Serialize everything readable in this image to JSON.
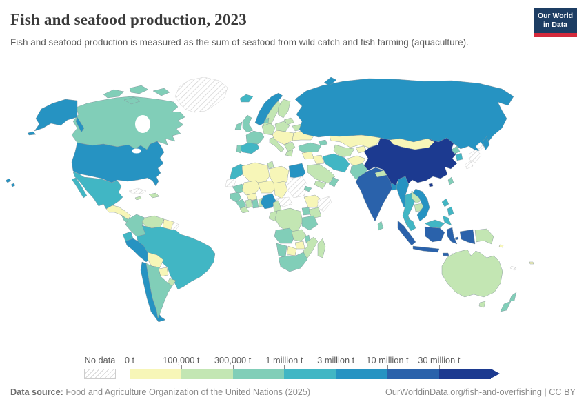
{
  "header": {
    "title": "Fish and seafood production, 2023",
    "subtitle": "Fish and seafood production is measured as the sum of seafood from wild catch and fish farming (aquaculture).",
    "logo": {
      "line1": "Our World",
      "line2": "in Data"
    }
  },
  "footer": {
    "source_label": "Data source:",
    "source_text": " Food and Agriculture Organization of the United Nations (2025)",
    "link_text": "OurWorldinData.org/fish-and-overfishing | CC BY"
  },
  "chart_data": {
    "type": "choropleth-map",
    "title": "Fish and seafood production, 2023",
    "unit": "tonnes",
    "legend": {
      "no_data_label": "No data",
      "tick_labels": [
        "0 t",
        "100,000 t",
        "300,000 t",
        "1 million t",
        "3 million t",
        "10 million t",
        "30 million t"
      ],
      "colors": [
        "#f7f6b8",
        "#c3e6b3",
        "#81ceb8",
        "#41b6c4",
        "#2693c2",
        "#2a62ab",
        "#1c3a90"
      ],
      "no_data_style": "diagonal-hatch",
      "open_ended_arrow": true
    },
    "bin_meaning": "index into legend colors; bins are [0-100k, 100k-300k, 300k-1M, 1M-3M, 3M-10M, 10M-30M, 30M+] tonnes",
    "regions": {
      "Canada": 2,
      "Arctic Islands": 2,
      "Alaska": 4,
      "Greenland": "no-data",
      "Iceland": 3,
      "United States": 4,
      "Hawaii": 4,
      "Mexico": 3,
      "Guatemala Honduras Nicaragua": 0,
      "Costa Rica Panama": 2,
      "Cuba": "no-data",
      "Jamaica": 1,
      "Hispaniola": 1,
      "Colombia": 2,
      "Venezuela": 1,
      "Guyana Suriname": 0,
      "French Guiana": "no-data",
      "Ecuador": 3,
      "Peru": 4,
      "Brazil": 3,
      "Bolivia": 0,
      "Paraguay": 0,
      "Uruguay": 1,
      "Chile": 4,
      "Argentina": 2,
      "Norway": 4,
      "Sweden": 1,
      "Finland": 1,
      "Baltics": 1,
      "Denmark": 2,
      "United Kingdom": 2,
      "Ireland": 2,
      "Germany": 1,
      "France": 2,
      "Spain": 3,
      "Portugal": 2,
      "Italy": 1,
      "Poland": 1,
      "Central Europe": 0,
      "Balkans": 1,
      "Greece": 1,
      "Ukraine": 0,
      "Belarus": 1,
      "Turkey": 2,
      "Caucasus": 2,
      "Russia": 4,
      "Novaya Zemlya": 4,
      "Sakhalin": 4,
      "Kazakhstan": 0,
      "Uzbekistan Turkmenistan": 1,
      "Kyrgyzstan Tajikistan": 0,
      "Afghanistan": 0,
      "Iran": 3,
      "Iraq": 0,
      "Levant": 0,
      "Saudi Arabia": 1,
      "Yemen": 1,
      "Oman": 2,
      "Eritrea": 2,
      "Pakistan": 2,
      "India": 5,
      "Sri Lanka": 2,
      "Bangladesh": 4,
      "Nepal": 1,
      "Myanmar": 4,
      "Thailand": 3,
      "Laos": 1,
      "Cambodia": 1,
      "Vietnam": 4,
      "Malaysia Peninsular": 3,
      "Malaysia Borneo": 3,
      "China": 6,
      "Hainan": 6,
      "Mongolia": 0,
      "North Korea": 2,
      "South Korea": 3,
      "Japan": "no-data",
      "Taiwan": 2,
      "Philippines": 3,
      "Indonesia Sumatra": 5,
      "Indonesia Java": 5,
      "Indonesia Kalimantan": 5,
      "Indonesia Sulawesi": 5,
      "Indonesia Papua": 5,
      "Indonesia Lesser Sunda": 5,
      "Papua New Guinea": 1,
      "Solomon Islands": 0,
      "Fiji": 0,
      "New Caledonia": "no-data",
      "Australia": 1,
      "Tasmania": 1,
      "New Zealand North": 2,
      "New Zealand South": 2,
      "Morocco": 3,
      "Western Sahara": "no-data",
      "Mauritania": 2,
      "Senegal": 2,
      "Guinea": 2,
      "Sierra Leone Liberia": 1,
      "Algeria": 0,
      "Tunisia": 1,
      "Libya": 0,
      "Egypt": 4,
      "Mali": 0,
      "Burkina Faso": 0,
      "Niger": 0,
      "Chad": 0,
      "Sudan": "no-data",
      "Central African Republic": "no-data",
      "Ethiopia": 0,
      "Somalia": "no-data",
      "Cote dIvoire": 1,
      "Ghana": 2,
      "Togo Benin": 1,
      "Nigeria": 4,
      "Cameroon": 1,
      "Gabon Congo": 1,
      "DR Congo": 1,
      "Uganda": 2,
      "Kenya": 1,
      "Tanzania": 2,
      "Angola": 2,
      "Zambia": 1,
      "Malawi": 2,
      "Mozambique": 1,
      "Zimbabwe": 0,
      "Botswana": 0,
      "Namibia": 2,
      "South Africa": 2,
      "Madagascar": 1
    }
  }
}
